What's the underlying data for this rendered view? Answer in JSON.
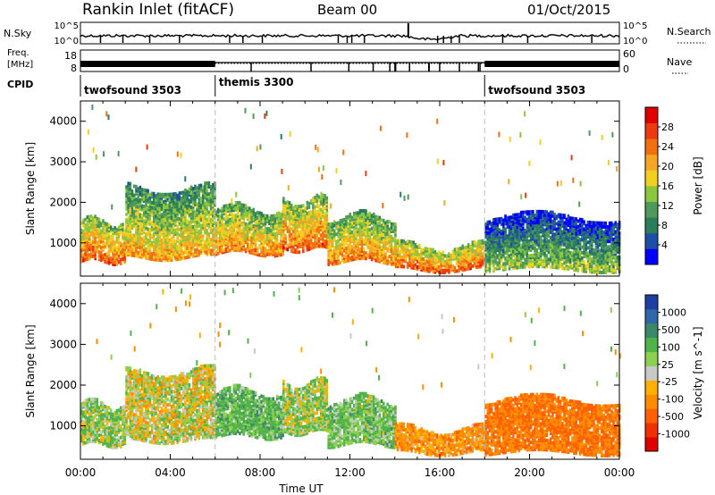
{
  "header": {
    "title": "Rankin Inlet (fitACF)",
    "beam": "Beam 00",
    "date": "01/Oct/2015"
  },
  "noise_panel": {
    "left_label": "N.Sky",
    "right_label": "N.Search",
    "left_ticks": [
      "10^5",
      "10^0"
    ],
    "right_ticks": [
      "10^5",
      "10^0"
    ],
    "right_legend_line": "dotted"
  },
  "freq_panel": {
    "left_label_line1": "Freq.",
    "left_label_line2": "[MHz]",
    "left_ticks": [
      "18",
      "8"
    ],
    "right_label": "Nave",
    "right_ticks": [
      "60",
      "0"
    ],
    "right_legend_line": "dotted"
  },
  "cpid": {
    "label": "CPID",
    "segments": [
      {
        "name": "twofsound 3503",
        "start_hour": 0,
        "end_hour": 6
      },
      {
        "name": "themis 3300",
        "start_hour": 6,
        "end_hour": 18
      },
      {
        "name": "twofsound 3503",
        "start_hour": 18,
        "end_hour": 24
      }
    ]
  },
  "colors": {
    "power_scale": [
      "#0000ff",
      "#1e4fa8",
      "#2b7e5a",
      "#4f9a5a",
      "#8cc63e",
      "#f0d020",
      "#f5a623",
      "#f07010",
      "#ee3a10",
      "#e00000"
    ],
    "velocity_scale": [
      "#1d3fa0",
      "#2e68a8",
      "#3a8a6a",
      "#52b34a",
      "#8cd050",
      "#c8c8c8",
      "#ffb000",
      "#ff8c00",
      "#ff6000",
      "#f03000",
      "#e00000"
    ],
    "gap": "#bbbbbb"
  },
  "chart_data": [
    {
      "type": "heatmap",
      "panel": "power",
      "xlabel": "Time UT",
      "ylabel": "Slant Range [km]",
      "xlim_hours": [
        0,
        24
      ],
      "ylim_km": [
        180,
        4500
      ],
      "y_ticks": [
        1000,
        2000,
        3000,
        4000
      ],
      "x_tick_labels": [
        "00:00",
        "04:00",
        "08:00",
        "12:00",
        "16:00",
        "20:00",
        "00:00"
      ],
      "colorbar": {
        "label": "Power [dB]",
        "ticks": [
          "4",
          "8",
          "12",
          "16",
          "20",
          "24",
          "28"
        ],
        "range": [
          0,
          30
        ]
      },
      "echo_regions": [
        {
          "start_hour": 0,
          "end_hour": 2,
          "min_km": 500,
          "max_km": 1500,
          "typical_db": 24
        },
        {
          "start_hour": 2,
          "end_hour": 6,
          "min_km": 600,
          "max_km": 2300,
          "typical_db": 20
        },
        {
          "start_hour": 6,
          "end_hour": 9,
          "min_km": 700,
          "max_km": 1800,
          "typical_db": 22
        },
        {
          "start_hour": 9,
          "end_hour": 11,
          "min_km": 800,
          "max_km": 2000,
          "typical_db": 24
        },
        {
          "start_hour": 11,
          "end_hour": 14,
          "min_km": 500,
          "max_km": 1600,
          "typical_db": 22
        },
        {
          "start_hour": 14,
          "end_hour": 18,
          "min_km": 300,
          "max_km": 900,
          "typical_db": 24
        },
        {
          "start_hour": 18,
          "end_hour": 24,
          "min_km": 300,
          "max_km": 1600,
          "typical_db": 14
        }
      ]
    },
    {
      "type": "heatmap",
      "panel": "velocity",
      "xlabel": "Time UT",
      "ylabel": "Slant Range [km]",
      "xlim_hours": [
        0,
        24
      ],
      "ylim_km": [
        180,
        4500
      ],
      "y_ticks": [
        1000,
        2000,
        3000,
        4000
      ],
      "x_tick_labels": [
        "00:00",
        "04:00",
        "08:00",
        "12:00",
        "16:00",
        "20:00",
        "00:00"
      ],
      "colorbar": {
        "label": "Velocity [m s^-1]",
        "ticks": [
          "1000",
          "500",
          "100",
          "25",
          "-25",
          "-100",
          "-500",
          "-1000"
        ]
      },
      "echo_regions": [
        {
          "start_hour": 0,
          "end_hour": 2,
          "min_km": 500,
          "max_km": 1500,
          "typical_ms": 80
        },
        {
          "start_hour": 2,
          "end_hour": 6,
          "min_km": 600,
          "max_km": 2300,
          "typical_ms": 0
        },
        {
          "start_hour": 6,
          "end_hour": 9,
          "min_km": 700,
          "max_km": 1800,
          "typical_ms": 150
        },
        {
          "start_hour": 9,
          "end_hour": 11,
          "min_km": 800,
          "max_km": 2000,
          "typical_ms": 60
        },
        {
          "start_hour": 11,
          "end_hour": 14,
          "min_km": 500,
          "max_km": 1600,
          "typical_ms": 120
        },
        {
          "start_hour": 14,
          "end_hour": 18,
          "min_km": 300,
          "max_km": 900,
          "typical_ms": -150
        },
        {
          "start_hour": 18,
          "end_hour": 24,
          "min_km": 300,
          "max_km": 1600,
          "typical_ms": -250
        }
      ]
    }
  ]
}
